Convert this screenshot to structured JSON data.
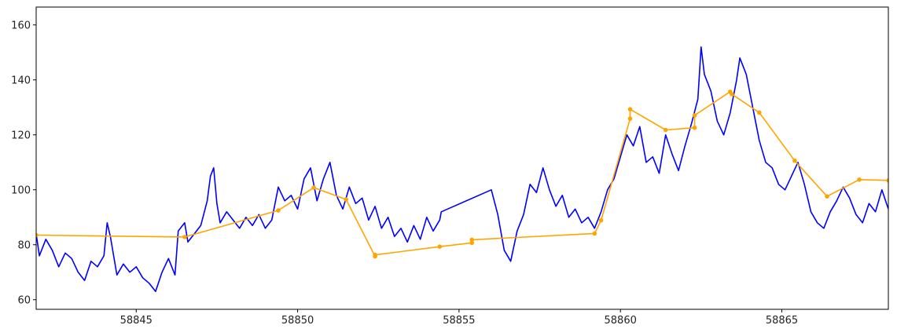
{
  "chart_data": {
    "type": "line",
    "title": "",
    "xlabel": "",
    "ylabel": "",
    "xlim": [
      58841.9,
      58868.3
    ],
    "ylim": [
      56.5,
      166.5
    ],
    "xticks": [
      58845,
      58850,
      58855,
      58860,
      58865
    ],
    "xtick_labels": [
      "58845",
      "58850",
      "58855",
      "58860",
      "58865"
    ],
    "yticks": [
      60,
      80,
      100,
      120,
      140,
      160
    ],
    "ytick_labels": [
      "60",
      "80",
      "100",
      "120",
      "140",
      "160"
    ],
    "grid": false,
    "legend": "none",
    "series": [
      {
        "color": "#0000ff",
        "marker": "none",
        "points": [
          [
            58841.9,
            84
          ],
          [
            58842.0,
            76
          ],
          [
            58842.2,
            82
          ],
          [
            58842.4,
            78
          ],
          [
            58842.6,
            72
          ],
          [
            58842.8,
            77
          ],
          [
            58843.0,
            75
          ],
          [
            58843.2,
            70
          ],
          [
            58843.4,
            67
          ],
          [
            58843.6,
            74
          ],
          [
            58843.8,
            72
          ],
          [
            58844.0,
            76
          ],
          [
            58844.1,
            88
          ],
          [
            58844.2,
            83
          ],
          [
            58844.4,
            69
          ],
          [
            58844.6,
            73
          ],
          [
            58844.8,
            70
          ],
          [
            58845.0,
            72
          ],
          [
            58845.2,
            68
          ],
          [
            58845.4,
            66
          ],
          [
            58845.6,
            63
          ],
          [
            58845.8,
            70
          ],
          [
            58846.0,
            75
          ],
          [
            58846.2,
            69
          ],
          [
            58846.3,
            85
          ],
          [
            58846.5,
            88
          ],
          [
            58846.6,
            81
          ],
          [
            58846.8,
            84
          ],
          [
            58847.0,
            87
          ],
          [
            58847.2,
            96
          ],
          [
            58847.3,
            105
          ],
          [
            58847.4,
            108
          ],
          [
            58847.5,
            95
          ],
          [
            58847.6,
            88
          ],
          [
            58847.8,
            92
          ],
          [
            58848.0,
            89
          ],
          [
            58848.2,
            86
          ],
          [
            58848.4,
            90
          ],
          [
            58848.6,
            87
          ],
          [
            58848.8,
            91
          ],
          [
            58849.0,
            86
          ],
          [
            58849.2,
            89
          ],
          [
            58849.4,
            101
          ],
          [
            58849.6,
            96
          ],
          [
            58849.8,
            98
          ],
          [
            58850.0,
            93
          ],
          [
            58850.2,
            104
          ],
          [
            58850.4,
            108
          ],
          [
            58850.6,
            96
          ],
          [
            58850.8,
            104
          ],
          [
            58851.0,
            110
          ],
          [
            58851.2,
            98
          ],
          [
            58851.4,
            93
          ],
          [
            58851.6,
            101
          ],
          [
            58851.8,
            95
          ],
          [
            58852.0,
            97
          ],
          [
            58852.2,
            89
          ],
          [
            58852.4,
            94
          ],
          [
            58852.6,
            86
          ],
          [
            58852.8,
            90
          ],
          [
            58853.0,
            83
          ],
          [
            58853.2,
            86
          ],
          [
            58853.4,
            81
          ],
          [
            58853.6,
            87
          ],
          [
            58853.8,
            82
          ],
          [
            58854.0,
            90
          ],
          [
            58854.2,
            85
          ],
          [
            58854.4,
            89
          ],
          [
            58854.45,
            92
          ],
          [
            58856.0,
            100
          ],
          [
            58856.2,
            91
          ],
          [
            58856.4,
            78
          ],
          [
            58856.6,
            74
          ],
          [
            58856.8,
            85
          ],
          [
            58857.0,
            91
          ],
          [
            58857.2,
            102
          ],
          [
            58857.4,
            99
          ],
          [
            58857.6,
            108
          ],
          [
            58857.8,
            100
          ],
          [
            58858.0,
            94
          ],
          [
            58858.2,
            98
          ],
          [
            58858.4,
            90
          ],
          [
            58858.6,
            93
          ],
          [
            58858.8,
            88
          ],
          [
            58859.0,
            90
          ],
          [
            58859.2,
            86
          ],
          [
            58859.4,
            92
          ],
          [
            58859.6,
            100
          ],
          [
            58859.8,
            104
          ],
          [
            58860.0,
            112
          ],
          [
            58860.2,
            120
          ],
          [
            58860.4,
            116
          ],
          [
            58860.6,
            123
          ],
          [
            58860.8,
            110
          ],
          [
            58861.0,
            112
          ],
          [
            58861.2,
            106
          ],
          [
            58861.4,
            120
          ],
          [
            58861.6,
            113
          ],
          [
            58861.8,
            107
          ],
          [
            58862.0,
            116
          ],
          [
            58862.2,
            124
          ],
          [
            58862.4,
            133
          ],
          [
            58862.5,
            152
          ],
          [
            58862.6,
            142
          ],
          [
            58862.8,
            136
          ],
          [
            58863.0,
            125
          ],
          [
            58863.2,
            120
          ],
          [
            58863.4,
            128
          ],
          [
            58863.6,
            140
          ],
          [
            58863.7,
            148
          ],
          [
            58863.9,
            142
          ],
          [
            58864.1,
            130
          ],
          [
            58864.3,
            118
          ],
          [
            58864.5,
            110
          ],
          [
            58864.7,
            108
          ],
          [
            58864.9,
            102
          ],
          [
            58865.1,
            100
          ],
          [
            58865.3,
            105
          ],
          [
            58865.5,
            110
          ],
          [
            58865.7,
            102
          ],
          [
            58865.9,
            92
          ],
          [
            58866.1,
            88
          ],
          [
            58866.3,
            86
          ],
          [
            58866.5,
            92
          ],
          [
            58866.7,
            96
          ],
          [
            58866.9,
            101
          ],
          [
            58867.1,
            97
          ],
          [
            58867.3,
            91
          ],
          [
            58867.5,
            88
          ],
          [
            58867.7,
            95
          ],
          [
            58867.9,
            92
          ],
          [
            58868.1,
            100
          ],
          [
            58868.3,
            93
          ]
        ]
      },
      {
        "color": "#ffa500",
        "marker": "circle",
        "points": [
          [
            58841.9,
            83.5
          ],
          [
            58846.5,
            82.8
          ],
          [
            58849.4,
            92.5
          ],
          [
            58850.5,
            100.8
          ],
          [
            58851.5,
            96.5
          ],
          [
            58852.4,
            75.8
          ],
          [
            58852.4,
            76.3
          ],
          [
            58854.4,
            79.3
          ],
          [
            58855.4,
            80.7
          ],
          [
            58855.4,
            81.8
          ],
          [
            58859.2,
            84.1
          ],
          [
            58859.4,
            88.9
          ],
          [
            58860.3,
            125.9
          ],
          [
            58860.3,
            129.3
          ],
          [
            58861.4,
            121.8
          ],
          [
            58862.3,
            122.6
          ],
          [
            58862.3,
            127.1
          ],
          [
            58863.4,
            135.7
          ],
          [
            58863.45,
            134.8
          ],
          [
            58864.3,
            128.1
          ],
          [
            58865.4,
            110.6
          ],
          [
            58866.4,
            97.6
          ],
          [
            58867.4,
            103.7
          ],
          [
            58868.3,
            103.4
          ]
        ]
      }
    ]
  }
}
